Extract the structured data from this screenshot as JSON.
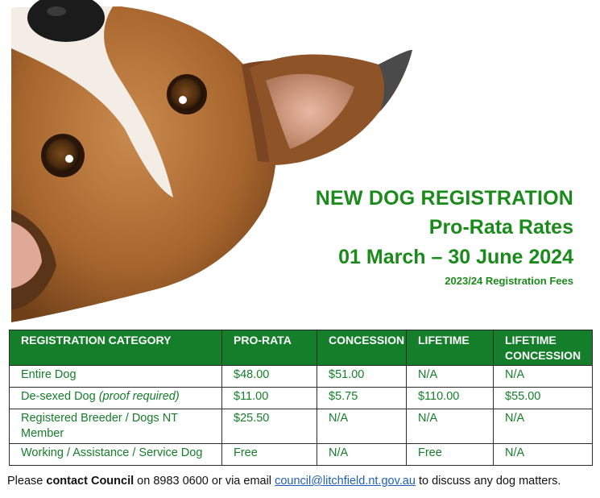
{
  "heading": {
    "line1": "NEW DOG REGISTRATION",
    "line2": "Pro-Rata Rates",
    "line3": "01 March – 30 June 2024",
    "line4": "2023/24 Registration Fees"
  },
  "colors": {
    "heading_green": "#1a8a1a",
    "table_header_bg": "#157e2a",
    "table_text": "#157e2a",
    "link": "#1f5fb8"
  },
  "table": {
    "headers": [
      "REGISTRATION CATEGORY",
      "PRO-RATA",
      "CONCESSION",
      "LIFETIME",
      "LIFETIME CONCESSION"
    ],
    "rows": [
      {
        "category": "Entire Dog",
        "category_note": "",
        "pro_rata": "$48.00",
        "concession": "$51.00",
        "lifetime": "N/A",
        "lifetime_concession": "N/A"
      },
      {
        "category": "De-sexed Dog",
        "category_note": "(proof required)",
        "pro_rata": "$11.00",
        "concession": "$5.75",
        "lifetime": "$110.00",
        "lifetime_concession": "$55.00"
      },
      {
        "category": "Registered Breeder / Dogs NT Member",
        "category_note": "",
        "pro_rata": "$25.50",
        "concession": "N/A",
        "lifetime": "N/A",
        "lifetime_concession": "N/A"
      },
      {
        "category": "Working / Assistance / Service Dog",
        "category_note": "",
        "pro_rata": "Free",
        "concession": "N/A",
        "lifetime": "Free",
        "lifetime_concession": "N/A"
      }
    ]
  },
  "footer": {
    "before": "Please ",
    "bold": "contact Council",
    "middle": " on 8983 0600 or via email ",
    "email": "council@litchfield.nt.gov.au",
    "after": " to discuss any dog matters."
  },
  "image": {
    "subject": "dog-peeking-photo"
  }
}
